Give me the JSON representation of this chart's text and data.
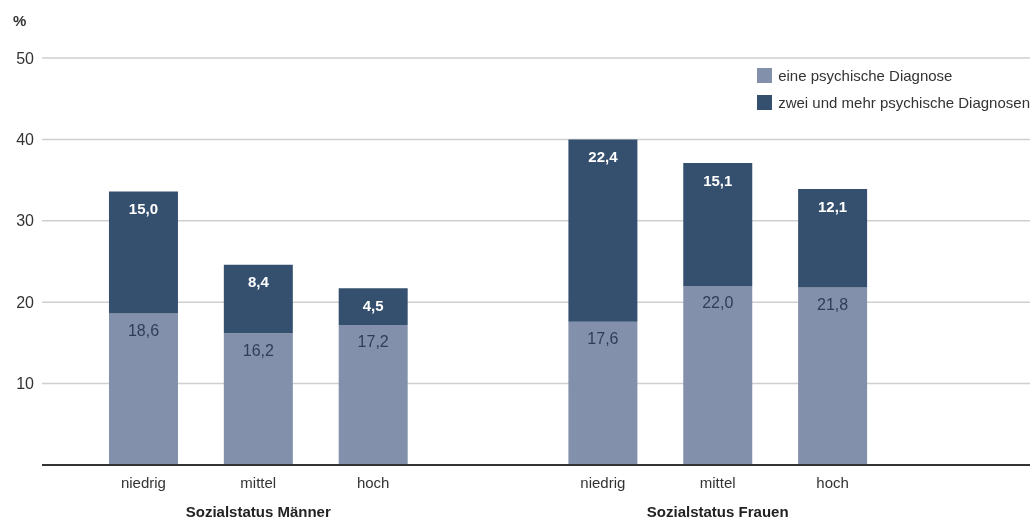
{
  "chart_data": {
    "type": "bar",
    "ylabel": "%",
    "categories": [
      "niedrig",
      "mittel",
      "hoch",
      null,
      "niedrig",
      "mittel",
      "hoch"
    ],
    "series": [
      {
        "name": "eine psychische Diagnose",
        "color": "#8290ab",
        "values": [
          18.6,
          16.2,
          17.2,
          null,
          17.6,
          22.0,
          21.8
        ],
        "value_labels": [
          "18,6",
          "16,2",
          "17,2",
          null,
          "17,6",
          "22,0",
          "21,8"
        ]
      },
      {
        "name": "zwei und mehr psychische Diagnosen",
        "color": "#35506f",
        "values": [
          15.0,
          8.4,
          4.5,
          null,
          22.4,
          15.1,
          12.1
        ],
        "value_labels": [
          "15,0",
          "8,4",
          "4,5",
          null,
          "22,4",
          "15,1",
          "12,1"
        ]
      }
    ],
    "stacked": true,
    "ylim": [
      0,
      50
    ],
    "yticks": [
      10,
      20,
      30,
      40,
      50
    ],
    "grid": "y",
    "legend": "top right",
    "annotations": [
      "Sozialstatus Männer",
      "Sozialstatus Frauen"
    ]
  }
}
